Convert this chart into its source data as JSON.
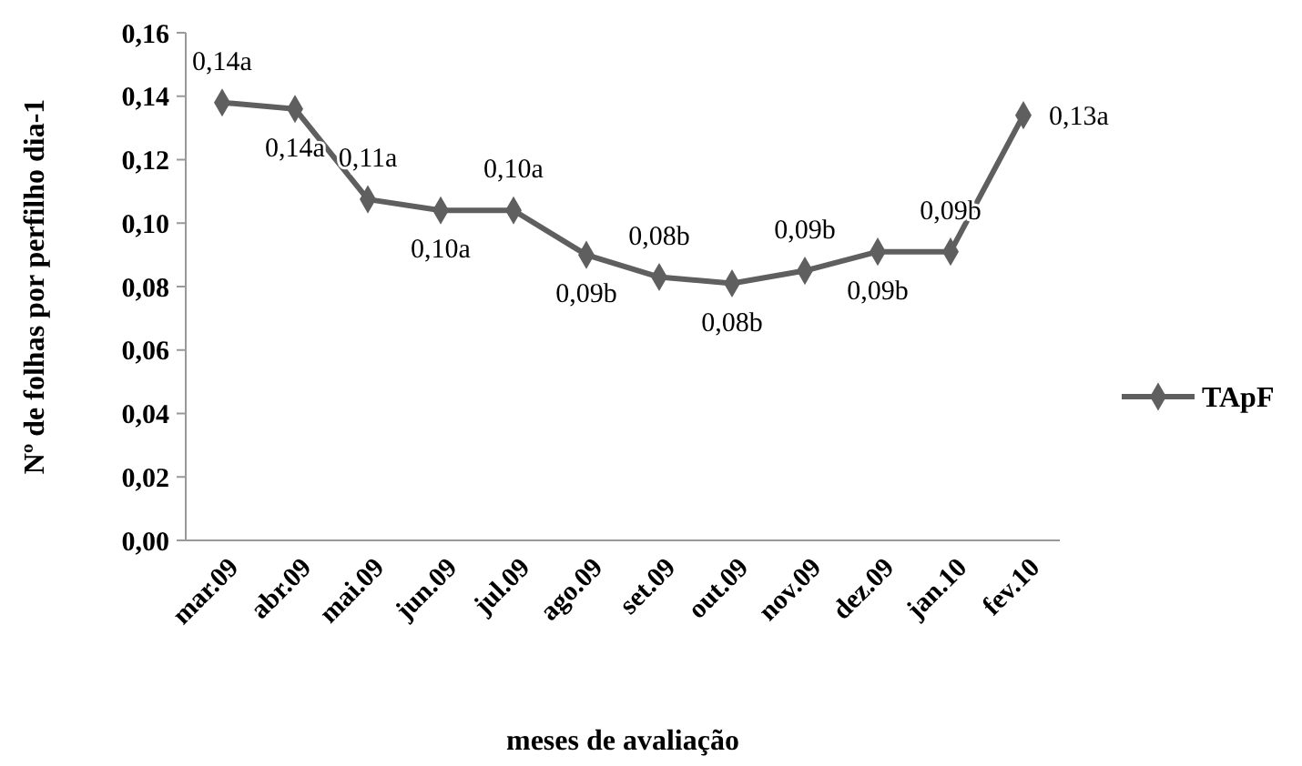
{
  "chart_data": {
    "type": "line",
    "xlabel": "meses de avaliação",
    "ylabel": "Nº de folhas por perfilho  dia-1",
    "categories": [
      "mar.09",
      "abr.09",
      "mai.09",
      "jun.09",
      "jul.09",
      "ago.09",
      "set.09",
      "out.09",
      "nov.09",
      "dez.09",
      "jan.10",
      "fev.10"
    ],
    "series": [
      {
        "name": "TApF",
        "color": "#5f5f5f",
        "values": [
          0.138,
          0.136,
          0.1075,
          0.104,
          0.104,
          0.09,
          0.083,
          0.081,
          0.085,
          0.091,
          0.091,
          0.134
        ],
        "value_labels": [
          "0,14a",
          "0,14a",
          "0,11a",
          "0,10a",
          "0,10a",
          "0,09b",
          "0,08b",
          "0,08b",
          "0,09b",
          "0,09b",
          "0,09b",
          "0,13a"
        ]
      }
    ],
    "ylim": [
      0,
      0.16
    ],
    "yticks": [
      {
        "value": 0,
        "label": "0,00"
      },
      {
        "value": 0.02,
        "label": "0,02"
      },
      {
        "value": 0.04,
        "label": "0,04"
      },
      {
        "value": 0.06,
        "label": "0,06"
      },
      {
        "value": 0.08,
        "label": "0,08"
      },
      {
        "value": 0.1,
        "label": "0,10"
      },
      {
        "value": 0.12,
        "label": "0,12"
      },
      {
        "value": 0.14,
        "label": "0,14"
      },
      {
        "value": 0.16,
        "label": "0,16"
      }
    ],
    "grid": false,
    "legend": "right",
    "marker": "diamond",
    "line_style": "solid"
  }
}
